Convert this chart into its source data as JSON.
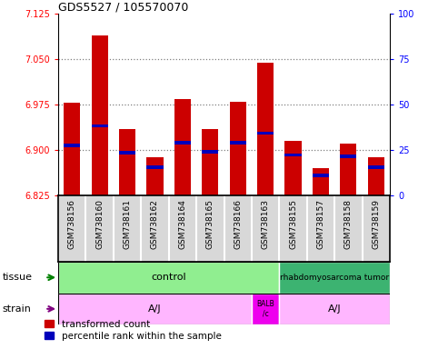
{
  "title": "GDS5527 / 105570070",
  "samples": [
    "GSM738156",
    "GSM738160",
    "GSM738161",
    "GSM738162",
    "GSM738164",
    "GSM738165",
    "GSM738166",
    "GSM738163",
    "GSM738155",
    "GSM738157",
    "GSM738158",
    "GSM738159"
  ],
  "red_values": [
    6.978,
    7.09,
    6.935,
    6.888,
    6.985,
    6.935,
    6.98,
    7.045,
    6.915,
    6.87,
    6.91,
    6.888
  ],
  "blue_values": [
    6.908,
    6.94,
    6.896,
    6.872,
    6.912,
    6.897,
    6.912,
    6.928,
    6.892,
    6.858,
    6.89,
    6.872
  ],
  "ymin": 6.825,
  "ymax": 7.125,
  "yticks_left": [
    6.825,
    6.9,
    6.975,
    7.05,
    7.125
  ],
  "yticks_right": [
    0,
    25,
    50,
    75,
    100
  ],
  "dashed_lines": [
    7.05,
    6.975,
    6.9
  ],
  "red_color": "#CC0000",
  "blue_color": "#0000BB",
  "bar_width": 0.6,
  "legend_red": "transformed count",
  "legend_blue": "percentile rank within the sample",
  "bg_color": "#D8D8D8",
  "tissue_control_color": "#90EE90",
  "tissue_rhabdo_color": "#3CB371",
  "strain_aj_color": "#FFB6FF",
  "strain_balb_color": "#EE00EE",
  "n_control": 8,
  "n_balb": 1,
  "n_rhabdo": 4
}
